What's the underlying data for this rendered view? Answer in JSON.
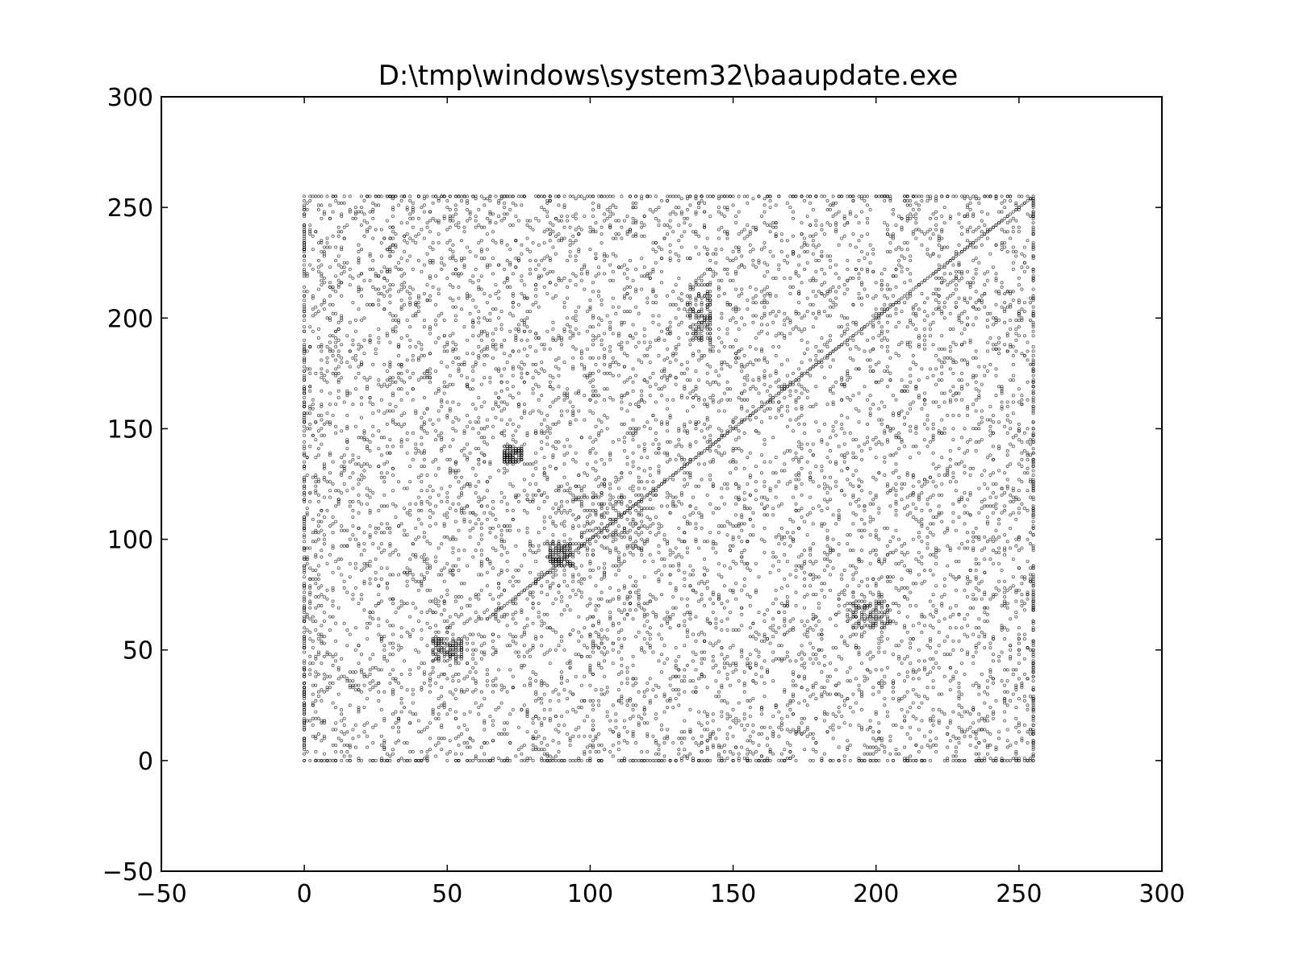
{
  "chart_data": {
    "type": "scatter",
    "title": "D:\\tmp\\windows\\system32\\baaupdate.exe",
    "xlabel": "",
    "ylabel": "",
    "xlim": [
      -50,
      300
    ],
    "ylim": [
      -50,
      300
    ],
    "x_ticks": [
      -50,
      0,
      50,
      100,
      150,
      200,
      250,
      300
    ],
    "y_ticks": [
      -50,
      0,
      50,
      100,
      150,
      200,
      250,
      300
    ],
    "x_tick_labels": [
      "−50",
      "0",
      "50",
      "100",
      "150",
      "200",
      "250",
      "300"
    ],
    "y_tick_labels": [
      "−50",
      "0",
      "50",
      "100",
      "150",
      "200",
      "250",
      "300"
    ],
    "grid": false,
    "series": [
      {
        "marker_color": "#000000",
        "extent": {
          "x": [
            0,
            255
          ],
          "y": [
            0,
            255
          ]
        },
        "diagonal_y_equals_x": {
          "x": [
            64,
            255
          ],
          "y": [
            64,
            255
          ]
        },
        "border_lines": {
          "x0": true,
          "y0": true,
          "x255": true,
          "y255": true
        },
        "clusters": [
          {
            "x": [
              95,
              120
            ],
            "y": [
              95,
              120
            ]
          },
          {
            "x": [
              70,
              76
            ],
            "y": [
              135,
              142
            ]
          },
          {
            "x": [
              86,
              94
            ],
            "y": [
              88,
              98
            ]
          },
          {
            "x": [
              135,
              142
            ],
            "y": [
              190,
              215
            ]
          },
          {
            "x": [
              190,
              205
            ],
            "y": [
              60,
              72
            ]
          },
          {
            "x": [
              45,
              55
            ],
            "y": [
              45,
              55
            ]
          }
        ]
      }
    ]
  }
}
